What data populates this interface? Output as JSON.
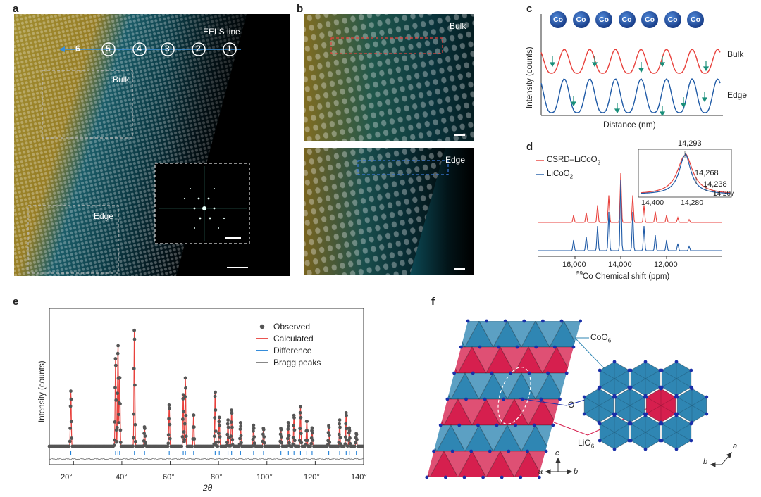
{
  "panel_labels": {
    "a": "a",
    "b": "b",
    "c": "c",
    "d": "d",
    "e": "e",
    "f": "f"
  },
  "panel_a": {
    "eels_label": "EELS line",
    "positions": [
      "6",
      "5",
      "4",
      "3",
      "2",
      "1"
    ],
    "bulk_label": "Bulk",
    "edge_label": "Edge"
  },
  "panel_b": {
    "bulk_label": "Bulk",
    "edge_label": "Edge"
  },
  "panel_c": {
    "co_label": "Co",
    "co_count": 7,
    "ylabel": "Intensity (counts)",
    "xlabel": "Distance (nm)",
    "bulk_label": "Bulk",
    "edge_label": "Edge",
    "colors": {
      "bulk": "#e8413c",
      "edge": "#1f5aa6",
      "arrow": "#1a8f7a"
    }
  },
  "panel_d": {
    "legend": {
      "series1_prefix": "CSRD–LiCoO",
      "series1_sub": "2",
      "series2_prefix": "LiCoO",
      "series2_sub": "2"
    },
    "xticks": [
      "16,000",
      "14,000",
      "12,000"
    ],
    "xlabel_sup": "59",
    "xlabel_rest": "Co Chemical shift (ppm)",
    "inset_labels": [
      "14,293",
      "14,268",
      "14,238",
      "14,207"
    ],
    "inset_xticks": [
      "14,400",
      "14,280"
    ],
    "colors": {
      "csrd": "#e8413c",
      "lco": "#1f5aa6"
    }
  },
  "panel_e": {
    "legend": [
      "Observed",
      "Calculated",
      "Difference",
      "Bragg peaks"
    ],
    "ylabel": "Intensity (counts)",
    "xlabel": "2θ",
    "xticks": [
      "20°",
      "40°",
      "60°",
      "80°",
      "100°",
      "120°",
      "140°"
    ],
    "colors": {
      "observed": "#555555",
      "calculated": "#e8413c",
      "difference": "#1f7fd6",
      "bragg": "#7a7a7a"
    }
  },
  "panel_f": {
    "coo6_prefix": "CoO",
    "coo6_sub": "6",
    "o_label": "O",
    "lio6_prefix": "LiO",
    "lio6_sub": "6",
    "axes_left": {
      "c": "c",
      "a": "a",
      "b": "b"
    },
    "axes_right": {
      "a": "a",
      "b": "b"
    },
    "colors": {
      "coo6": "#2f86b3",
      "lio6": "#d61f4e",
      "o": "#1a2fa8"
    }
  }
}
